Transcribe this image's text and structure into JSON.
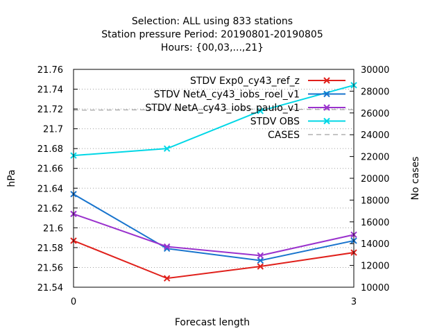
{
  "chart_data": {
    "type": "line",
    "title_lines": [
      "Selection: ALL using   833 stations",
      "Station pressure   Period: 20190801-20190805",
      "Hours: {00,03,...,21}"
    ],
    "xlabel": "Forecast length",
    "ylabel": "hPa",
    "y2label": "No cases",
    "xlim": [
      0,
      3
    ],
    "ylim": [
      21.54,
      21.76
    ],
    "y2lim": [
      10000,
      30000
    ],
    "x_ticks": [
      "0",
      "3"
    ],
    "y_ticks": [
      "21.54",
      "21.56",
      "21.58",
      "21.6",
      "21.62",
      "21.64",
      "21.66",
      "21.68",
      "21.7",
      "21.72",
      "21.74",
      "21.76"
    ],
    "y2_ticks": [
      "10000",
      "12000",
      "14000",
      "16000",
      "18000",
      "20000",
      "22000",
      "24000",
      "26000",
      "28000",
      "30000"
    ],
    "grid": true,
    "legend_position": "top-right",
    "x": [
      0,
      1,
      2,
      3
    ],
    "series": [
      {
        "name": "STDV Exp0_cy43_ref_z",
        "color": "#e0201b",
        "axis": "y",
        "marker": "x",
        "values": [
          21.587,
          21.549,
          21.561,
          21.575
        ]
      },
      {
        "name": "STDV NetA_cy43_iobs_roel_v1",
        "color": "#1874cd",
        "axis": "y",
        "marker": "x",
        "values": [
          21.634,
          21.579,
          21.567,
          21.587
        ]
      },
      {
        "name": "STDV NetA_cy43_iobs_paulo_v1",
        "color": "#9a32cd",
        "axis": "y",
        "marker": "x",
        "values": [
          21.614,
          21.581,
          21.572,
          21.593
        ]
      },
      {
        "name": "STDV OBS",
        "color": "#00d7e6",
        "axis": "y",
        "marker": "x",
        "values": [
          21.673,
          21.68,
          21.718,
          21.744
        ]
      },
      {
        "name": "CASES",
        "color": "#a0a0a0",
        "axis": "y2",
        "marker": "none",
        "dashed": true,
        "values": [
          26250,
          26300,
          26350,
          26300
        ]
      }
    ]
  }
}
